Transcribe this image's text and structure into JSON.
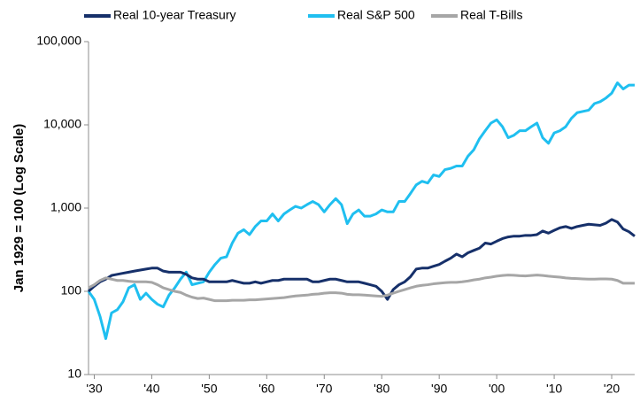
{
  "chart_data": {
    "type": "line",
    "ylabel": "Jan 1929 = 100 (Log Scale)",
    "log_scale_y": true,
    "grid": false,
    "legend": "top",
    "xlim": [
      1929,
      2024
    ],
    "ylim": [
      10,
      100000
    ],
    "yticks": [
      {
        "value": 100000,
        "label": "100,000"
      },
      {
        "value": 10000,
        "label": "10,000"
      },
      {
        "value": 1000,
        "label": "1,000"
      },
      100,
      10
    ],
    "xticks": [
      {
        "value": 1930,
        "label": "'30"
      },
      {
        "value": 1940,
        "label": "'40"
      },
      {
        "value": 1950,
        "label": "'50"
      },
      {
        "value": 1960,
        "label": "'60"
      },
      {
        "value": 1970,
        "label": "'70"
      },
      {
        "value": 1980,
        "label": "'80"
      },
      {
        "value": 1990,
        "label": "'90"
      },
      {
        "value": 2000,
        "label": "'00"
      },
      {
        "value": 2010,
        "label": "'10"
      },
      {
        "value": 2020,
        "label": "'20"
      }
    ],
    "x": [
      1929,
      1930,
      1931,
      1932,
      1933,
      1934,
      1935,
      1936,
      1937,
      1938,
      1939,
      1940,
      1941,
      1942,
      1943,
      1944,
      1945,
      1946,
      1947,
      1948,
      1949,
      1950,
      1951,
      1952,
      1953,
      1954,
      1955,
      1956,
      1957,
      1958,
      1959,
      1960,
      1961,
      1962,
      1963,
      1964,
      1965,
      1966,
      1967,
      1968,
      1969,
      1970,
      1971,
      1972,
      1973,
      1974,
      1975,
      1976,
      1977,
      1978,
      1979,
      1980,
      1981,
      1982,
      1983,
      1984,
      1985,
      1986,
      1987,
      1988,
      1989,
      1990,
      1991,
      1992,
      1993,
      1994,
      1995,
      1996,
      1997,
      1998,
      1999,
      2000,
      2001,
      2002,
      2003,
      2004,
      2005,
      2006,
      2007,
      2008,
      2009,
      2010,
      2011,
      2012,
      2013,
      2014,
      2015,
      2016,
      2017,
      2018,
      2019,
      2020,
      2021,
      2022,
      2023,
      2024
    ],
    "series": [
      {
        "name": "Real 10-year Treasury",
        "color": "#16306a",
        "values": [
          100,
          115,
          130,
          140,
          155,
          160,
          165,
          170,
          175,
          180,
          185,
          190,
          190,
          175,
          170,
          170,
          170,
          160,
          145,
          140,
          140,
          130,
          130,
          130,
          130,
          135,
          130,
          125,
          125,
          130,
          125,
          130,
          135,
          135,
          140,
          140,
          140,
          140,
          140,
          130,
          130,
          135,
          140,
          140,
          135,
          130,
          130,
          130,
          125,
          120,
          115,
          100,
          80,
          105,
          120,
          130,
          150,
          185,
          190,
          190,
          200,
          210,
          230,
          250,
          280,
          260,
          290,
          310,
          330,
          380,
          370,
          400,
          430,
          450,
          460,
          460,
          470,
          470,
          480,
          530,
          500,
          540,
          580,
          600,
          570,
          600,
          620,
          640,
          630,
          620,
          660,
          730,
          680,
          560,
          520,
          460
        ]
      },
      {
        "name": "Real S&P 500",
        "color": "#1fbff0",
        "values": [
          100,
          80,
          50,
          27,
          55,
          60,
          75,
          110,
          120,
          80,
          95,
          80,
          70,
          65,
          90,
          110,
          140,
          170,
          120,
          125,
          130,
          170,
          210,
          250,
          260,
          380,
          500,
          550,
          480,
          600,
          700,
          700,
          850,
          700,
          850,
          950,
          1050,
          1000,
          1100,
          1200,
          1100,
          900,
          1100,
          1300,
          1100,
          650,
          850,
          950,
          800,
          800,
          850,
          950,
          900,
          900,
          1200,
          1200,
          1500,
          1900,
          2100,
          2000,
          2500,
          2400,
          2900,
          3000,
          3200,
          3200,
          4200,
          5000,
          6800,
          8500,
          10500,
          11500,
          9500,
          7000,
          7500,
          8500,
          8500,
          9500,
          10500,
          7000,
          6000,
          8000,
          8500,
          9500,
          12000,
          14000,
          14500,
          15000,
          18000,
          19000,
          21000,
          24000,
          32000,
          27000,
          30000,
          30000
        ]
      },
      {
        "name": "Real T-Bills",
        "color": "#a6a6a6",
        "values": [
          110,
          120,
          135,
          145,
          140,
          135,
          135,
          132,
          130,
          130,
          130,
          128,
          120,
          110,
          105,
          100,
          97,
          90,
          85,
          82,
          83,
          80,
          77,
          77,
          77,
          78,
          78,
          78,
          79,
          79,
          80,
          81,
          82,
          83,
          84,
          86,
          88,
          89,
          90,
          92,
          93,
          95,
          96,
          96,
          95,
          92,
          91,
          91,
          90,
          89,
          88,
          87,
          90,
          95,
          100,
          105,
          110,
          115,
          118,
          120,
          123,
          125,
          127,
          128,
          128,
          130,
          133,
          137,
          140,
          145,
          148,
          152,
          155,
          157,
          156,
          154,
          153,
          155,
          157,
          155,
          152,
          150,
          148,
          145,
          143,
          142,
          141,
          140,
          140,
          141,
          141,
          140,
          135,
          125,
          125,
          125
        ]
      }
    ]
  }
}
